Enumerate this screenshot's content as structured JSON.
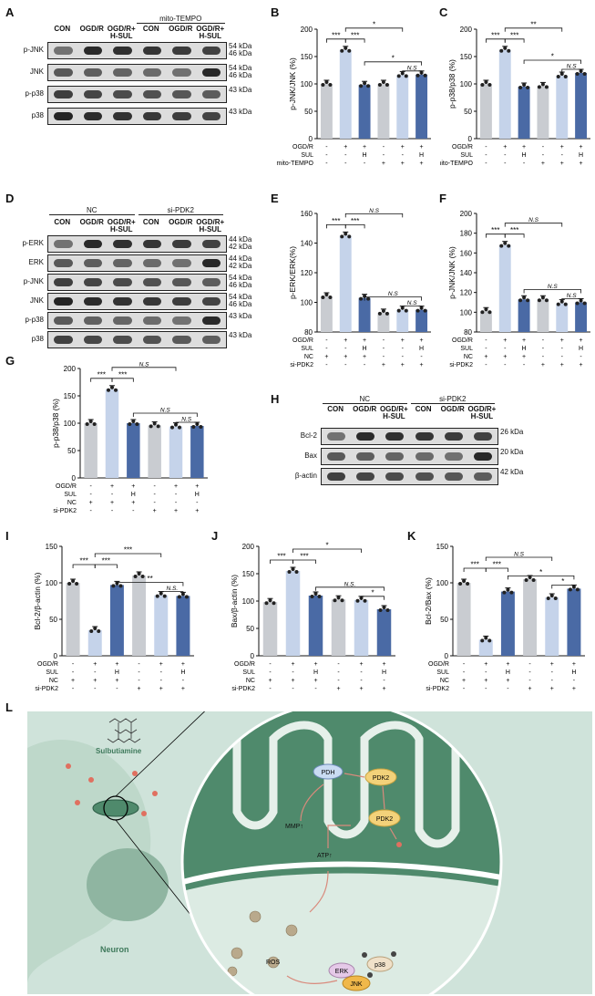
{
  "panel_labels": {
    "A": "A",
    "B": "B",
    "C": "C",
    "D": "D",
    "E": "E",
    "F": "F",
    "G": "G",
    "H": "H",
    "I": "I",
    "J": "J",
    "K": "K",
    "L": "L"
  },
  "panelA": {
    "group": "mito-TEMPO",
    "lanes": [
      "CON",
      "OGD/R",
      "OGD/R+\nH-SUL",
      "CON",
      "OGD/R",
      "OGD/R+\nH-SUL"
    ],
    "rows": [
      {
        "name": "p-JNK",
        "kda": "54 kDa\n46 kDa"
      },
      {
        "name": "JNK",
        "kda": "54 kDa\n46 kDa"
      },
      {
        "name": "p-p38",
        "kda": "43 kDa"
      },
      {
        "name": "p38",
        "kda": "43 kDa"
      }
    ]
  },
  "panelD": {
    "groups": [
      "NC",
      "si-PDK2"
    ],
    "lanes": [
      "CON",
      "OGD/R",
      "OGD/R+\nH-SUL",
      "CON",
      "OGD/R",
      "OGD/R+\nH-SUL"
    ],
    "rows": [
      {
        "name": "p-ERK",
        "kda": "44 kDa\n42 kDa"
      },
      {
        "name": "ERK",
        "kda": "44 kDa\n42 kDa"
      },
      {
        "name": "p-JNK",
        "kda": "54 kDa\n46 kDa"
      },
      {
        "name": "JNK",
        "kda": "54 kDa\n46 kDa"
      },
      {
        "name": "p-p38",
        "kda": "43 kDa"
      },
      {
        "name": "p38",
        "kda": "43 kDa"
      }
    ]
  },
  "panelH": {
    "groups": [
      "NC",
      "si-PDK2"
    ],
    "lanes": [
      "CON",
      "OGD/R",
      "OGD/R+\nH-SUL",
      "CON",
      "OGD/R",
      "OGD/R+\nH-SUL"
    ],
    "rows": [
      {
        "name": "Bcl-2",
        "kda": "26 kDa"
      },
      {
        "name": "Bax",
        "kda": "20 kDa"
      },
      {
        "name": "β-actin",
        "kda": "42 kDa"
      }
    ]
  },
  "chart_data": [
    {
      "id": "B",
      "type": "bar",
      "ylabel": "p-JNK/JNK (%)",
      "ylim": [
        0,
        200
      ],
      "yticks": [
        0,
        50,
        100,
        150,
        200
      ],
      "values": [
        100,
        162,
        98,
        100,
        116,
        117
      ],
      "colors": [
        "#c9ccd1",
        "#c5d3ea",
        "#4a6aa5",
        "#c9ccd1",
        "#c5d3ea",
        "#4a6aa5"
      ],
      "condition_rows": [
        {
          "name": "OGD/R",
          "vals": [
            "-",
            "+",
            "+",
            "-",
            "+",
            "+"
          ]
        },
        {
          "name": "SUL",
          "vals": [
            "-",
            "-",
            "H",
            "-",
            "-",
            "H"
          ]
        },
        {
          "name": "mito-TEMPO",
          "vals": [
            "-",
            "-",
            "-",
            "+",
            "+",
            "+"
          ]
        }
      ],
      "annotations": [
        "***",
        "***",
        "*",
        "*",
        "N.S"
      ]
    },
    {
      "id": "C",
      "type": "bar",
      "ylabel": "p-p38/p38 (%)",
      "ylim": [
        0,
        200
      ],
      "yticks": [
        0,
        50,
        100,
        150,
        200
      ],
      "values": [
        100,
        162,
        95,
        96,
        115,
        120
      ],
      "colors": [
        "#c9ccd1",
        "#c5d3ea",
        "#4a6aa5",
        "#c9ccd1",
        "#c5d3ea",
        "#4a6aa5"
      ],
      "condition_rows": [
        {
          "name": "OGD/R",
          "vals": [
            "-",
            "+",
            "+",
            "-",
            "+",
            "+"
          ]
        },
        {
          "name": "SUL",
          "vals": [
            "-",
            "-",
            "H",
            "-",
            "-",
            "H"
          ]
        },
        {
          "name": "mito-TEMPO",
          "vals": [
            "-",
            "-",
            "-",
            "+",
            "+",
            "+"
          ]
        }
      ],
      "annotations": [
        "***",
        "***",
        "**",
        "*",
        "N.S"
      ]
    },
    {
      "id": "E",
      "type": "bar",
      "ylabel": "p-ERK/ERK(%)",
      "ylim": [
        80,
        160
      ],
      "yticks": [
        80,
        100,
        120,
        140,
        160
      ],
      "values": [
        104,
        145,
        103,
        93,
        95,
        95
      ],
      "colors": [
        "#c9ccd1",
        "#c5d3ea",
        "#4a6aa5",
        "#c9ccd1",
        "#c5d3ea",
        "#4a6aa5"
      ],
      "condition_rows": [
        {
          "name": "OGD/R",
          "vals": [
            "-",
            "+",
            "+",
            "-",
            "+",
            "+"
          ]
        },
        {
          "name": "SUL",
          "vals": [
            "-",
            "-",
            "H",
            "-",
            "-",
            "H"
          ]
        },
        {
          "name": "NC",
          "vals": [
            "+",
            "+",
            "+",
            "-",
            "-",
            "-"
          ]
        },
        {
          "name": "si-PDK2",
          "vals": [
            "-",
            "-",
            "-",
            "+",
            "+",
            "+"
          ]
        }
      ],
      "annotations": [
        "***",
        "***",
        "N.S",
        "N.S",
        "N.S"
      ]
    },
    {
      "id": "F",
      "type": "bar",
      "ylabel": "p-JNK/JNK (%)",
      "ylim": [
        80,
        200
      ],
      "yticks": [
        80,
        100,
        120,
        140,
        160,
        180,
        200
      ],
      "values": [
        101,
        168,
        113,
        113,
        109,
        110
      ],
      "colors": [
        "#c9ccd1",
        "#c5d3ea",
        "#4a6aa5",
        "#c9ccd1",
        "#c5d3ea",
        "#4a6aa5"
      ],
      "condition_rows": [
        {
          "name": "OGD/R",
          "vals": [
            "-",
            "+",
            "+",
            "-",
            "+",
            "+"
          ]
        },
        {
          "name": "SUL",
          "vals": [
            "-",
            "-",
            "H",
            "-",
            "-",
            "H"
          ]
        },
        {
          "name": "NC",
          "vals": [
            "+",
            "+",
            "+",
            "-",
            "-",
            "-"
          ]
        },
        {
          "name": "si-PDK2",
          "vals": [
            "-",
            "-",
            "-",
            "+",
            "+",
            "+"
          ]
        }
      ],
      "annotations": [
        "***",
        "***",
        "N.S",
        "N.S",
        "N.S"
      ]
    },
    {
      "id": "G",
      "type": "bar",
      "ylabel": "p-p38/p38 (%)",
      "ylim": [
        0,
        200
      ],
      "yticks": [
        0,
        50,
        100,
        150,
        200
      ],
      "values": [
        100,
        162,
        100,
        96,
        94,
        95
      ],
      "colors": [
        "#c9ccd1",
        "#c5d3ea",
        "#4a6aa5",
        "#c9ccd1",
        "#c5d3ea",
        "#4a6aa5"
      ],
      "condition_rows": [
        {
          "name": "OGD/R",
          "vals": [
            "-",
            "+",
            "+",
            "-",
            "+",
            "+"
          ]
        },
        {
          "name": "SUL",
          "vals": [
            "-",
            "-",
            "H",
            "-",
            "-",
            "H"
          ]
        },
        {
          "name": "NC",
          "vals": [
            "+",
            "+",
            "+",
            "-",
            "-",
            "-"
          ]
        },
        {
          "name": "si-PDK2",
          "vals": [
            "-",
            "-",
            "-",
            "+",
            "+",
            "+"
          ]
        }
      ],
      "annotations": [
        "***",
        "***",
        "N.S",
        "N.S",
        "N.S"
      ]
    },
    {
      "id": "I",
      "type": "bar",
      "ylabel": "Bcl-2/β-actin (%)",
      "ylim": [
        0,
        150
      ],
      "yticks": [
        0,
        50,
        100,
        150
      ],
      "values": [
        100,
        35,
        97,
        110,
        83,
        82
      ],
      "colors": [
        "#c9ccd1",
        "#c5d3ea",
        "#4a6aa5",
        "#c9ccd1",
        "#c5d3ea",
        "#4a6aa5"
      ],
      "condition_rows": [
        {
          "name": "OGD/R",
          "vals": [
            "-",
            "+",
            "+",
            "-",
            "+",
            "+"
          ]
        },
        {
          "name": "SUL",
          "vals": [
            "-",
            "-",
            "H",
            "-",
            "-",
            "H"
          ]
        },
        {
          "name": "NC",
          "vals": [
            "+",
            "+",
            "+",
            "-",
            "-",
            "-"
          ]
        },
        {
          "name": "si-PDK2",
          "vals": [
            "-",
            "-",
            "-",
            "+",
            "+",
            "+"
          ]
        }
      ],
      "annotations": [
        "***",
        "***",
        "***",
        "**",
        "N.S."
      ]
    },
    {
      "id": "J",
      "type": "bar",
      "ylabel": "Bax/β-actin (%)",
      "ylim": [
        0,
        200
      ],
      "yticks": [
        0,
        50,
        100,
        150,
        200
      ],
      "values": [
        98,
        155,
        110,
        103,
        102,
        85
      ],
      "colors": [
        "#c9ccd1",
        "#c5d3ea",
        "#4a6aa5",
        "#c9ccd1",
        "#c5d3ea",
        "#4a6aa5"
      ],
      "condition_rows": [
        {
          "name": "OGD/R",
          "vals": [
            "-",
            "+",
            "+",
            "-",
            "+",
            "+"
          ]
        },
        {
          "name": "SUL",
          "vals": [
            "-",
            "-",
            "H",
            "-",
            "-",
            "H"
          ]
        },
        {
          "name": "NC",
          "vals": [
            "+",
            "+",
            "+",
            "-",
            "-",
            "-"
          ]
        },
        {
          "name": "si-PDK2",
          "vals": [
            "-",
            "-",
            "-",
            "+",
            "+",
            "+"
          ]
        }
      ],
      "annotations": [
        "***",
        "***",
        "*",
        "N.S.",
        "*"
      ]
    },
    {
      "id": "K",
      "type": "bar",
      "ylabel": "Bcl-2/Bax (%)",
      "ylim": [
        0,
        150
      ],
      "yticks": [
        0,
        50,
        100,
        150
      ],
      "values": [
        100,
        22,
        88,
        105,
        80,
        92
      ],
      "colors": [
        "#c9ccd1",
        "#c5d3ea",
        "#4a6aa5",
        "#c9ccd1",
        "#c5d3ea",
        "#4a6aa5"
      ],
      "condition_rows": [
        {
          "name": "OGD/R",
          "vals": [
            "-",
            "+",
            "+",
            "-",
            "+",
            "+"
          ]
        },
        {
          "name": "SUL",
          "vals": [
            "-",
            "-",
            "H",
            "-",
            "-",
            "H"
          ]
        },
        {
          "name": "NC",
          "vals": [
            "+",
            "+",
            "+",
            "-",
            "-",
            "-"
          ]
        },
        {
          "name": "si-PDK2",
          "vals": [
            "-",
            "-",
            "-",
            "+",
            "+",
            "+"
          ]
        }
      ],
      "annotations": [
        "***",
        "***",
        "N.S",
        "*",
        "*"
      ]
    }
  ],
  "panelL": {
    "labels": {
      "sulbutiamine": "Sulbutiamine",
      "neuron": "Neuron",
      "pdh": "PDH",
      "pdk2a": "PDK2",
      "pdk2b": "PDK2",
      "mmp": "MMP↑",
      "atp": "ATP↑",
      "ros": "ROS",
      "erk": "ERK",
      "p38": "p38",
      "jnk": "JNK"
    },
    "colors": {
      "bg": "#cfe3da",
      "mito": "#4f8a6c",
      "cristae": "#e6f0ea",
      "pdk": "#f3d27a",
      "pdh": "#c9dbf2",
      "erk": "#e5c9e8",
      "jnk": "#f0b84a",
      "p38": "#f0e1c9",
      "dot": "#e07060"
    }
  }
}
